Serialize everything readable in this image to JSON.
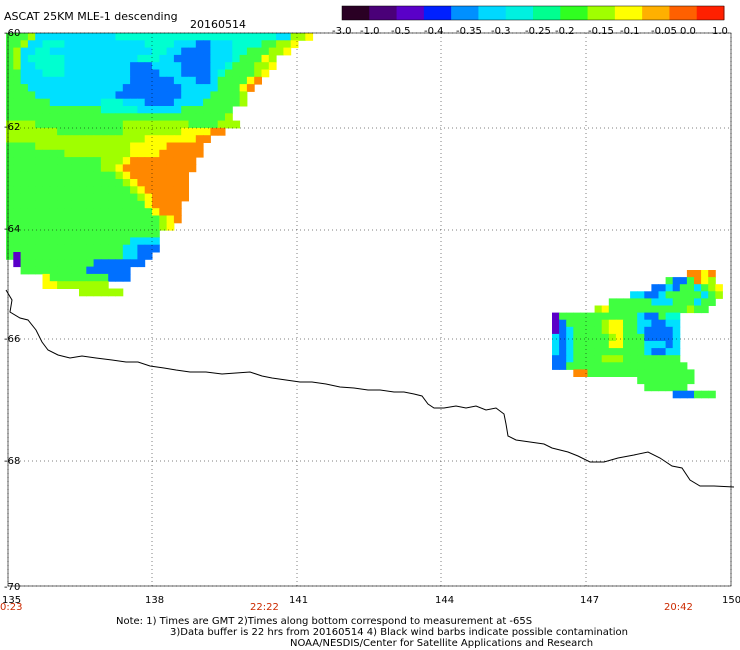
{
  "title": "ASCAT 25KM MLE-1 descending",
  "date": "20160514",
  "colorbar": {
    "colors": [
      "#2a0024",
      "#4a0078",
      "#5a00c8",
      "#0020ff",
      "#0090ff",
      "#00d8ff",
      "#00f0e0",
      "#00ff90",
      "#30ff20",
      "#a0ff00",
      "#ffff00",
      "#ffb000",
      "#ff6000",
      "#ff2000"
    ],
    "tick_labels": [
      "-3.0",
      "-1.0",
      "-0.5",
      "-0.4",
      "-0.35",
      "-0.3",
      "-0.25",
      "-0.2",
      "-0.15",
      "-0.1",
      "-0.05",
      "0.0",
      "1.0"
    ]
  },
  "lat_labels": [
    "-60",
    "-62",
    "-64",
    "-66",
    "-68",
    "-70"
  ],
  "lon_labels": [
    "135",
    "138",
    "141",
    "144",
    "147",
    "150"
  ],
  "time_labels": [
    "0:23",
    "22:22",
    "20:42"
  ],
  "notes": {
    "line1": "Note: 1) Times are GMT 2)Times along bottom correspond to measurement at -65S",
    "line2": "3)Data buffer is 22 hrs from 20160514 4) Black wind barbs indicate possible contamination",
    "line3": "NOAA/NESDIS/Center for Satellite Applications and Research"
  }
}
